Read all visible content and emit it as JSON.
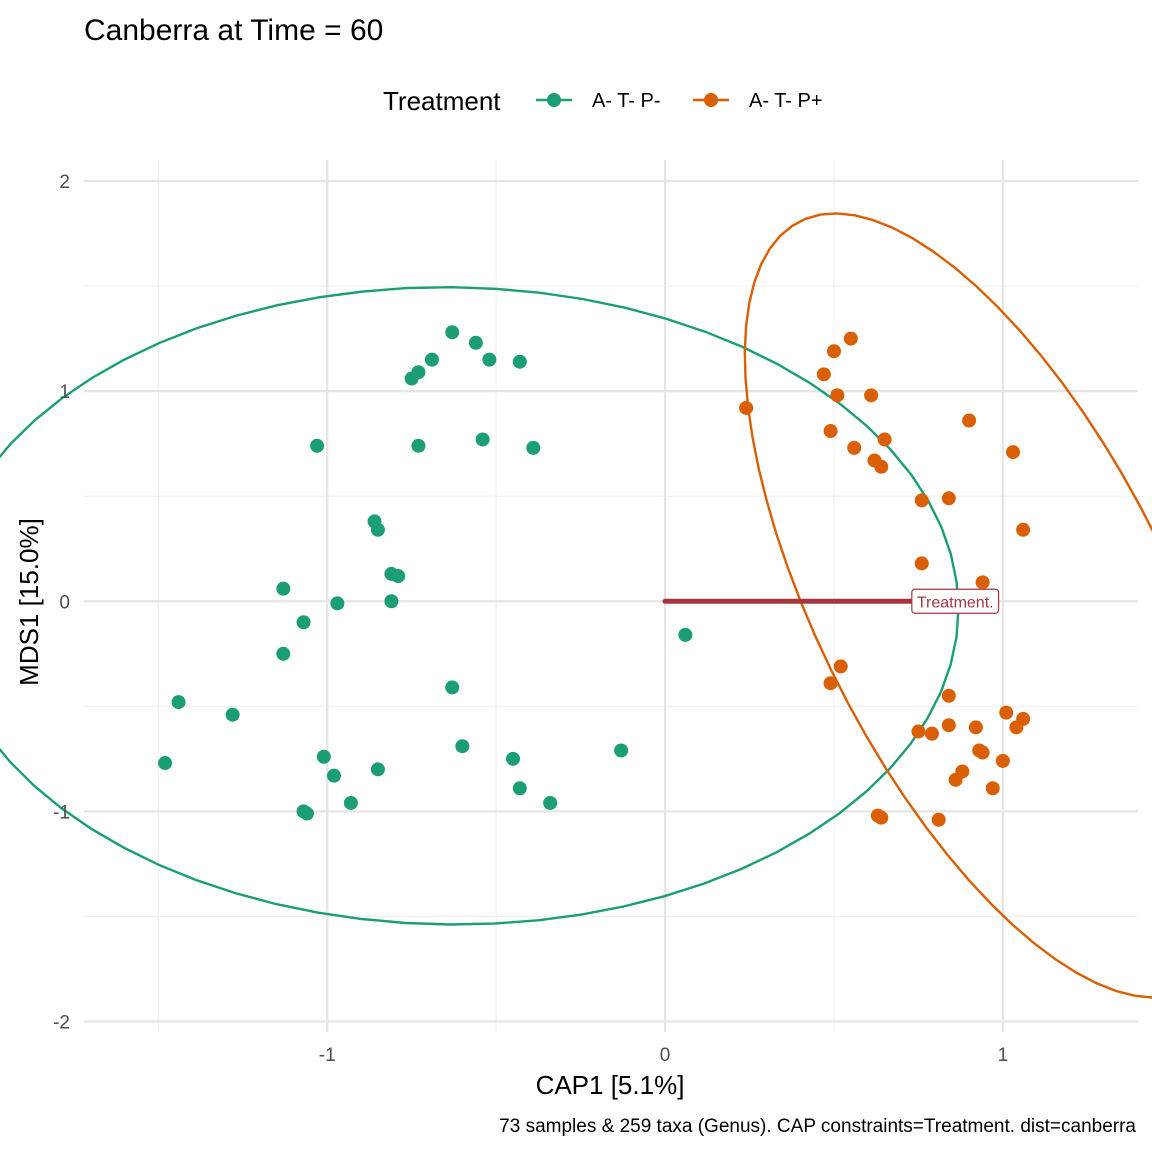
{
  "chart_data": {
    "type": "scatter",
    "title": "Canberra at Time = 60",
    "xlabel": "CAP1 [5.1%]",
    "ylabel": "MDS1 [15.0%]",
    "caption": "73 samples & 259 taxa (Genus). CAP constraints=Treatment. dist=canberra",
    "xlim": [
      -1.72,
      1.4
    ],
    "ylim": [
      -2.05,
      2.1
    ],
    "x_ticks": [
      -1,
      0,
      1
    ],
    "x_tick_labels": [
      "-1",
      "0",
      "1"
    ],
    "y_ticks": [
      -2,
      -1,
      0,
      1,
      2
    ],
    "y_tick_labels": [
      "-2",
      "-1",
      "0",
      "1",
      "2"
    ],
    "grid": true,
    "legend": {
      "title": "Treatment",
      "position": "top",
      "entries": [
        "A- T- P-",
        "A- T- P+"
      ]
    },
    "series": [
      {
        "name": "A- T- P-",
        "color": "#1b9e77",
        "ellipse": {
          "cx": -0.635,
          "cy": -0.022,
          "rx": 1.5,
          "ry": 1.52,
          "angle": 0.43
        },
        "points": [
          [
            -0.63,
            1.28
          ],
          [
            -0.56,
            1.23
          ],
          [
            -0.52,
            1.15
          ],
          [
            -0.43,
            1.14
          ],
          [
            -0.69,
            1.15
          ],
          [
            -0.73,
            1.09
          ],
          [
            -0.75,
            1.06
          ],
          [
            -1.03,
            0.74
          ],
          [
            -0.54,
            0.77
          ],
          [
            -0.39,
            0.73
          ],
          [
            -0.73,
            0.74
          ],
          [
            -0.86,
            0.38
          ],
          [
            -0.85,
            0.34
          ],
          [
            -0.81,
            0.13
          ],
          [
            -0.79,
            0.12
          ],
          [
            -1.13,
            0.06
          ],
          [
            -0.97,
            -0.01
          ],
          [
            -0.81,
            0.0
          ],
          [
            -1.07,
            -0.1
          ],
          [
            -1.13,
            -0.25
          ],
          [
            -0.63,
            -0.41
          ],
          [
            -1.44,
            -0.48
          ],
          [
            -1.28,
            -0.54
          ],
          [
            -0.6,
            -0.69
          ],
          [
            -0.45,
            -0.75
          ],
          [
            -1.01,
            -0.74
          ],
          [
            -1.48,
            -0.77
          ],
          [
            -0.98,
            -0.83
          ],
          [
            -0.85,
            -0.8
          ],
          [
            -0.43,
            -0.89
          ],
          [
            -0.93,
            -0.96
          ],
          [
            -0.34,
            -0.96
          ],
          [
            -1.07,
            -1.0
          ],
          [
            -1.06,
            -1.01
          ],
          [
            -0.13,
            -0.71
          ],
          [
            0.06,
            -0.16
          ]
        ]
      },
      {
        "name": "A- T- P+",
        "color": "#d95f02",
        "ellipse": {
          "cx": 0.975,
          "cy": -0.02,
          "rx": 0.55,
          "ry": 1.93,
          "angle": 0.27
        },
        "points": [
          [
            0.55,
            1.25
          ],
          [
            0.5,
            1.19
          ],
          [
            0.47,
            1.08
          ],
          [
            0.51,
            0.98
          ],
          [
            0.61,
            0.98
          ],
          [
            0.24,
            0.92
          ],
          [
            0.9,
            0.86
          ],
          [
            0.49,
            0.81
          ],
          [
            0.65,
            0.77
          ],
          [
            0.56,
            0.73
          ],
          [
            1.03,
            0.71
          ],
          [
            0.62,
            0.67
          ],
          [
            0.64,
            0.64
          ],
          [
            0.76,
            0.48
          ],
          [
            0.84,
            0.49
          ],
          [
            1.06,
            0.34
          ],
          [
            0.76,
            0.18
          ],
          [
            0.94,
            0.09
          ],
          [
            0.52,
            -0.31
          ],
          [
            0.49,
            -0.39
          ],
          [
            0.84,
            -0.45
          ],
          [
            1.01,
            -0.53
          ],
          [
            1.06,
            -0.56
          ],
          [
            1.04,
            -0.6
          ],
          [
            0.84,
            -0.59
          ],
          [
            0.92,
            -0.6
          ],
          [
            0.75,
            -0.62
          ],
          [
            0.79,
            -0.63
          ],
          [
            0.93,
            -0.71
          ],
          [
            0.94,
            -0.72
          ],
          [
            1.0,
            -0.76
          ],
          [
            0.88,
            -0.81
          ],
          [
            0.86,
            -0.85
          ],
          [
            0.97,
            -0.89
          ],
          [
            0.63,
            -1.02
          ],
          [
            0.64,
            -1.03
          ],
          [
            0.81,
            -1.04
          ]
        ]
      }
    ],
    "arrow": {
      "label": "Treatment.",
      "from": [
        0,
        0
      ],
      "to": [
        0.85,
        0
      ],
      "color": "#a4363c"
    }
  }
}
